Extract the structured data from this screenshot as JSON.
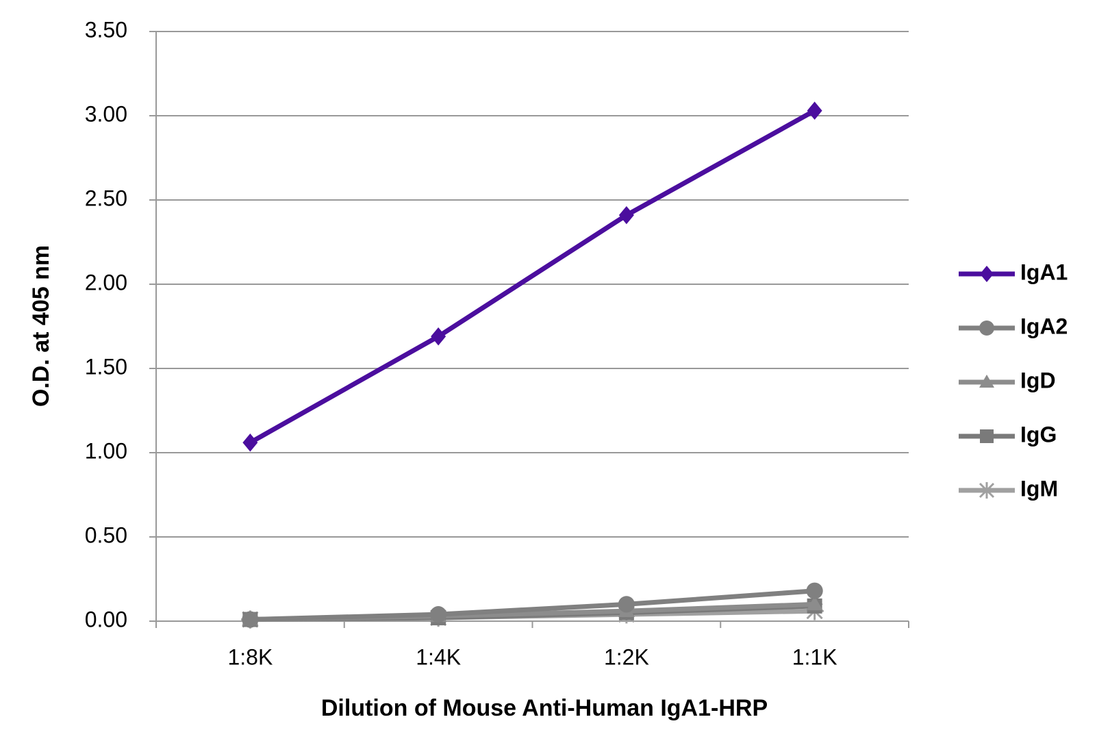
{
  "chart_data": {
    "type": "line",
    "x_label": "Dilution of Mouse Anti-Human IgA1-HRP",
    "y_label": "O.D. at 405 nm",
    "categories": [
      "1:8K",
      "1:4K",
      "1:2K",
      "1:1K"
    ],
    "series": [
      {
        "name": "IgA1",
        "color": "#4b0e9e",
        "marker": "diamond",
        "values": [
          1.06,
          1.69,
          2.41,
          3.03
        ]
      },
      {
        "name": "IgA2",
        "color": "#808080",
        "marker": "circle",
        "values": [
          0.01,
          0.04,
          0.1,
          0.18
        ]
      },
      {
        "name": "IgD",
        "color": "#8c8c8c",
        "marker": "triangle",
        "values": [
          0.01,
          0.03,
          0.06,
          0.1
        ]
      },
      {
        "name": "IgG",
        "color": "#7a7a7a",
        "marker": "square",
        "values": [
          0.01,
          0.02,
          0.05,
          0.09
        ]
      },
      {
        "name": "IgM",
        "color": "#a0a0a0",
        "marker": "star",
        "values": [
          0.01,
          0.02,
          0.04,
          0.06
        ]
      }
    ],
    "ylim": [
      0,
      3.5
    ],
    "yticks": [
      {
        "value": 0,
        "label": "0.00"
      },
      {
        "value": 0.5,
        "label": "0.50"
      },
      {
        "value": 1,
        "label": "1.00"
      },
      {
        "value": 1.5,
        "label": "1.50"
      },
      {
        "value": 2,
        "label": "2.00"
      },
      {
        "value": 2.5,
        "label": "2.50"
      },
      {
        "value": 3,
        "label": "3.00"
      },
      {
        "value": 3.5,
        "label": "3.50"
      }
    ],
    "grid": true,
    "legend": "right"
  }
}
